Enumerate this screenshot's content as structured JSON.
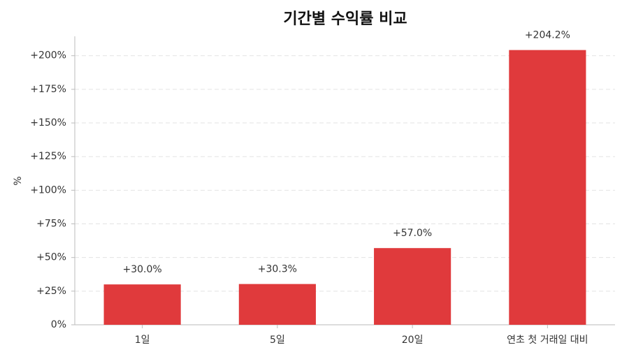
{
  "chart_data": {
    "type": "bar",
    "title": "기간별 수익률 비교",
    "y_label": "%",
    "categories": [
      "1일",
      "5일",
      "20일",
      "연초 첫 거래일 대비"
    ],
    "values": [
      30.0,
      30.3,
      57.0,
      204.2
    ],
    "value_labels": [
      "+30.0%",
      "+30.3%",
      "+57.0%",
      "+204.2%"
    ],
    "color": "#e03a3c",
    "ylim": [
      0,
      214.4
    ],
    "yticks": [
      {
        "value": 0,
        "label": "0%"
      },
      {
        "value": 25,
        "label": "+25%"
      },
      {
        "value": 50,
        "label": "+50%"
      },
      {
        "value": 75,
        "label": "+75%"
      },
      {
        "value": 100,
        "label": "+100%"
      },
      {
        "value": 125,
        "label": "+125%"
      },
      {
        "value": 150,
        "label": "+150%"
      },
      {
        "value": 175,
        "label": "+175%"
      },
      {
        "value": 200,
        "label": "+200%"
      }
    ],
    "grid": true
  }
}
